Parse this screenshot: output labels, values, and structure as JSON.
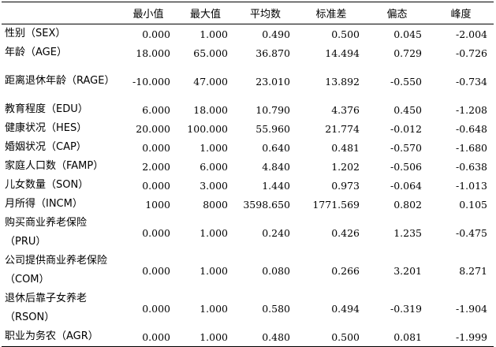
{
  "table": {
    "headers": [
      "",
      "最小值",
      "最大值",
      "平均数",
      "标准差",
      "偏态",
      "峰度"
    ],
    "rows": [
      {
        "label": "性别（SEX）",
        "values": [
          "0.000",
          "1.000",
          "0.490",
          "0.500",
          "0.045",
          "-2.004"
        ]
      },
      {
        "label": "年龄（AGE）",
        "values": [
          "18.000",
          "65.000",
          "36.870",
          "14.494",
          "0.729",
          "-0.726"
        ]
      },
      {
        "label": "距离退休年龄（RAGE）",
        "values": [
          "-10.000",
          "47.000",
          "23.010",
          "13.892",
          "-0.550",
          "-0.734"
        ]
      },
      {
        "label": "教育程度（EDU）",
        "values": [
          "6.000",
          "18.000",
          "10.790",
          "4.376",
          "0.450",
          "-1.208"
        ]
      },
      {
        "label": "健康状况（HES）",
        "values": [
          "20.000",
          "100.000",
          "55.960",
          "21.774",
          "-0.012",
          "-0.648"
        ]
      },
      {
        "label": "婚姻状况（CAP）",
        "values": [
          "0.000",
          "1.000",
          "0.640",
          "0.481",
          "-0.570",
          "-1.680"
        ]
      },
      {
        "label": "家庭人口数（FAMP）",
        "values": [
          "2.000",
          "6.000",
          "4.840",
          "1.202",
          "-0.506",
          "-0.638"
        ]
      },
      {
        "label": "儿女数量（SON）",
        "values": [
          "0.000",
          "3.000",
          "1.440",
          "0.973",
          "-0.064",
          "-1.013"
        ]
      },
      {
        "label": "月所得（INCM）",
        "values": [
          "1000",
          "8000",
          "3598.650",
          "1771.569",
          "0.802",
          "0.105"
        ]
      },
      {
        "label": "购买商业养老保险（PRU）",
        "values": [
          "0.000",
          "1.000",
          "0.240",
          "0.426",
          "1.235",
          "-0.475"
        ]
      },
      {
        "label": "公司提供商业养老保险（COM）",
        "values": [
          "0.000",
          "1.000",
          "0.080",
          "0.266",
          "3.201",
          "8.271"
        ]
      },
      {
        "label": "退休后靠子女养老（RSON）",
        "values": [
          "0.000",
          "1.000",
          "0.580",
          "0.494",
          "-0.319",
          "-1.904"
        ]
      },
      {
        "label": "职业为务农（AGR）",
        "values": [
          "0.000",
          "1.000",
          "0.480",
          "0.500",
          "0.081",
          "-1.999"
        ]
      }
    ]
  }
}
